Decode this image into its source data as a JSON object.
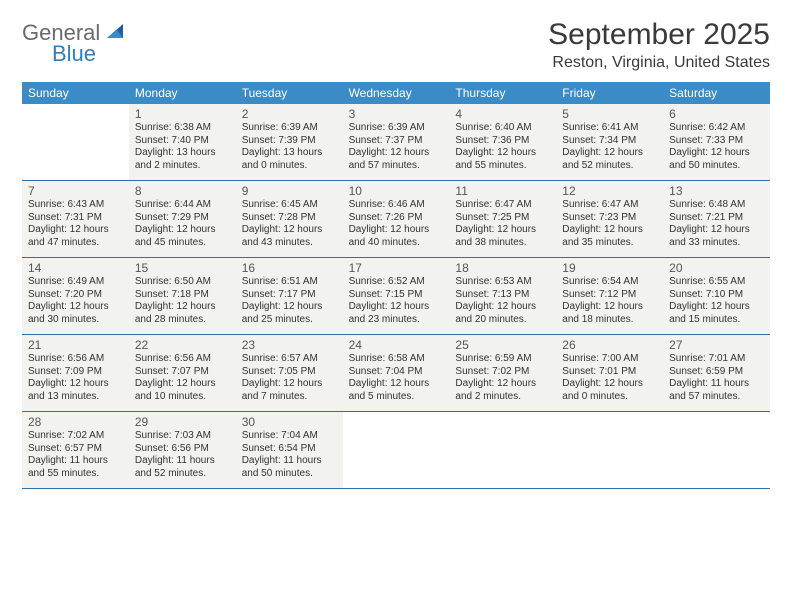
{
  "logo": {
    "text_general": "General",
    "text_blue": "Blue"
  },
  "header": {
    "month_title": "September 2025",
    "location": "Reston, Virginia, United States"
  },
  "colors": {
    "header_bg": "#3b8bc6",
    "header_text": "#ffffff",
    "row_divider": "#2f6fa6",
    "cell_bg": "#f2f2f0",
    "page_bg": "#ffffff",
    "body_text": "#333333",
    "logo_gray": "#6a6a6a",
    "logo_blue": "#2f7fbf"
  },
  "days_of_week": [
    "Sunday",
    "Monday",
    "Tuesday",
    "Wednesday",
    "Thursday",
    "Friday",
    "Saturday"
  ],
  "weeks": [
    [
      null,
      {
        "n": "1",
        "sr": "Sunrise: 6:38 AM",
        "ss": "Sunset: 7:40 PM",
        "d1": "Daylight: 13 hours",
        "d2": "and 2 minutes."
      },
      {
        "n": "2",
        "sr": "Sunrise: 6:39 AM",
        "ss": "Sunset: 7:39 PM",
        "d1": "Daylight: 13 hours",
        "d2": "and 0 minutes."
      },
      {
        "n": "3",
        "sr": "Sunrise: 6:39 AM",
        "ss": "Sunset: 7:37 PM",
        "d1": "Daylight: 12 hours",
        "d2": "and 57 minutes."
      },
      {
        "n": "4",
        "sr": "Sunrise: 6:40 AM",
        "ss": "Sunset: 7:36 PM",
        "d1": "Daylight: 12 hours",
        "d2": "and 55 minutes."
      },
      {
        "n": "5",
        "sr": "Sunrise: 6:41 AM",
        "ss": "Sunset: 7:34 PM",
        "d1": "Daylight: 12 hours",
        "d2": "and 52 minutes."
      },
      {
        "n": "6",
        "sr": "Sunrise: 6:42 AM",
        "ss": "Sunset: 7:33 PM",
        "d1": "Daylight: 12 hours",
        "d2": "and 50 minutes."
      }
    ],
    [
      {
        "n": "7",
        "sr": "Sunrise: 6:43 AM",
        "ss": "Sunset: 7:31 PM",
        "d1": "Daylight: 12 hours",
        "d2": "and 47 minutes."
      },
      {
        "n": "8",
        "sr": "Sunrise: 6:44 AM",
        "ss": "Sunset: 7:29 PM",
        "d1": "Daylight: 12 hours",
        "d2": "and 45 minutes."
      },
      {
        "n": "9",
        "sr": "Sunrise: 6:45 AM",
        "ss": "Sunset: 7:28 PM",
        "d1": "Daylight: 12 hours",
        "d2": "and 43 minutes."
      },
      {
        "n": "10",
        "sr": "Sunrise: 6:46 AM",
        "ss": "Sunset: 7:26 PM",
        "d1": "Daylight: 12 hours",
        "d2": "and 40 minutes."
      },
      {
        "n": "11",
        "sr": "Sunrise: 6:47 AM",
        "ss": "Sunset: 7:25 PM",
        "d1": "Daylight: 12 hours",
        "d2": "and 38 minutes."
      },
      {
        "n": "12",
        "sr": "Sunrise: 6:47 AM",
        "ss": "Sunset: 7:23 PM",
        "d1": "Daylight: 12 hours",
        "d2": "and 35 minutes."
      },
      {
        "n": "13",
        "sr": "Sunrise: 6:48 AM",
        "ss": "Sunset: 7:21 PM",
        "d1": "Daylight: 12 hours",
        "d2": "and 33 minutes."
      }
    ],
    [
      {
        "n": "14",
        "sr": "Sunrise: 6:49 AM",
        "ss": "Sunset: 7:20 PM",
        "d1": "Daylight: 12 hours",
        "d2": "and 30 minutes."
      },
      {
        "n": "15",
        "sr": "Sunrise: 6:50 AM",
        "ss": "Sunset: 7:18 PM",
        "d1": "Daylight: 12 hours",
        "d2": "and 28 minutes."
      },
      {
        "n": "16",
        "sr": "Sunrise: 6:51 AM",
        "ss": "Sunset: 7:17 PM",
        "d1": "Daylight: 12 hours",
        "d2": "and 25 minutes."
      },
      {
        "n": "17",
        "sr": "Sunrise: 6:52 AM",
        "ss": "Sunset: 7:15 PM",
        "d1": "Daylight: 12 hours",
        "d2": "and 23 minutes."
      },
      {
        "n": "18",
        "sr": "Sunrise: 6:53 AM",
        "ss": "Sunset: 7:13 PM",
        "d1": "Daylight: 12 hours",
        "d2": "and 20 minutes."
      },
      {
        "n": "19",
        "sr": "Sunrise: 6:54 AM",
        "ss": "Sunset: 7:12 PM",
        "d1": "Daylight: 12 hours",
        "d2": "and 18 minutes."
      },
      {
        "n": "20",
        "sr": "Sunrise: 6:55 AM",
        "ss": "Sunset: 7:10 PM",
        "d1": "Daylight: 12 hours",
        "d2": "and 15 minutes."
      }
    ],
    [
      {
        "n": "21",
        "sr": "Sunrise: 6:56 AM",
        "ss": "Sunset: 7:09 PM",
        "d1": "Daylight: 12 hours",
        "d2": "and 13 minutes."
      },
      {
        "n": "22",
        "sr": "Sunrise: 6:56 AM",
        "ss": "Sunset: 7:07 PM",
        "d1": "Daylight: 12 hours",
        "d2": "and 10 minutes."
      },
      {
        "n": "23",
        "sr": "Sunrise: 6:57 AM",
        "ss": "Sunset: 7:05 PM",
        "d1": "Daylight: 12 hours",
        "d2": "and 7 minutes."
      },
      {
        "n": "24",
        "sr": "Sunrise: 6:58 AM",
        "ss": "Sunset: 7:04 PM",
        "d1": "Daylight: 12 hours",
        "d2": "and 5 minutes."
      },
      {
        "n": "25",
        "sr": "Sunrise: 6:59 AM",
        "ss": "Sunset: 7:02 PM",
        "d1": "Daylight: 12 hours",
        "d2": "and 2 minutes."
      },
      {
        "n": "26",
        "sr": "Sunrise: 7:00 AM",
        "ss": "Sunset: 7:01 PM",
        "d1": "Daylight: 12 hours",
        "d2": "and 0 minutes."
      },
      {
        "n": "27",
        "sr": "Sunrise: 7:01 AM",
        "ss": "Sunset: 6:59 PM",
        "d1": "Daylight: 11 hours",
        "d2": "and 57 minutes."
      }
    ],
    [
      {
        "n": "28",
        "sr": "Sunrise: 7:02 AM",
        "ss": "Sunset: 6:57 PM",
        "d1": "Daylight: 11 hours",
        "d2": "and 55 minutes."
      },
      {
        "n": "29",
        "sr": "Sunrise: 7:03 AM",
        "ss": "Sunset: 6:56 PM",
        "d1": "Daylight: 11 hours",
        "d2": "and 52 minutes."
      },
      {
        "n": "30",
        "sr": "Sunrise: 7:04 AM",
        "ss": "Sunset: 6:54 PM",
        "d1": "Daylight: 11 hours",
        "d2": "and 50 minutes."
      },
      null,
      null,
      null,
      null
    ]
  ]
}
